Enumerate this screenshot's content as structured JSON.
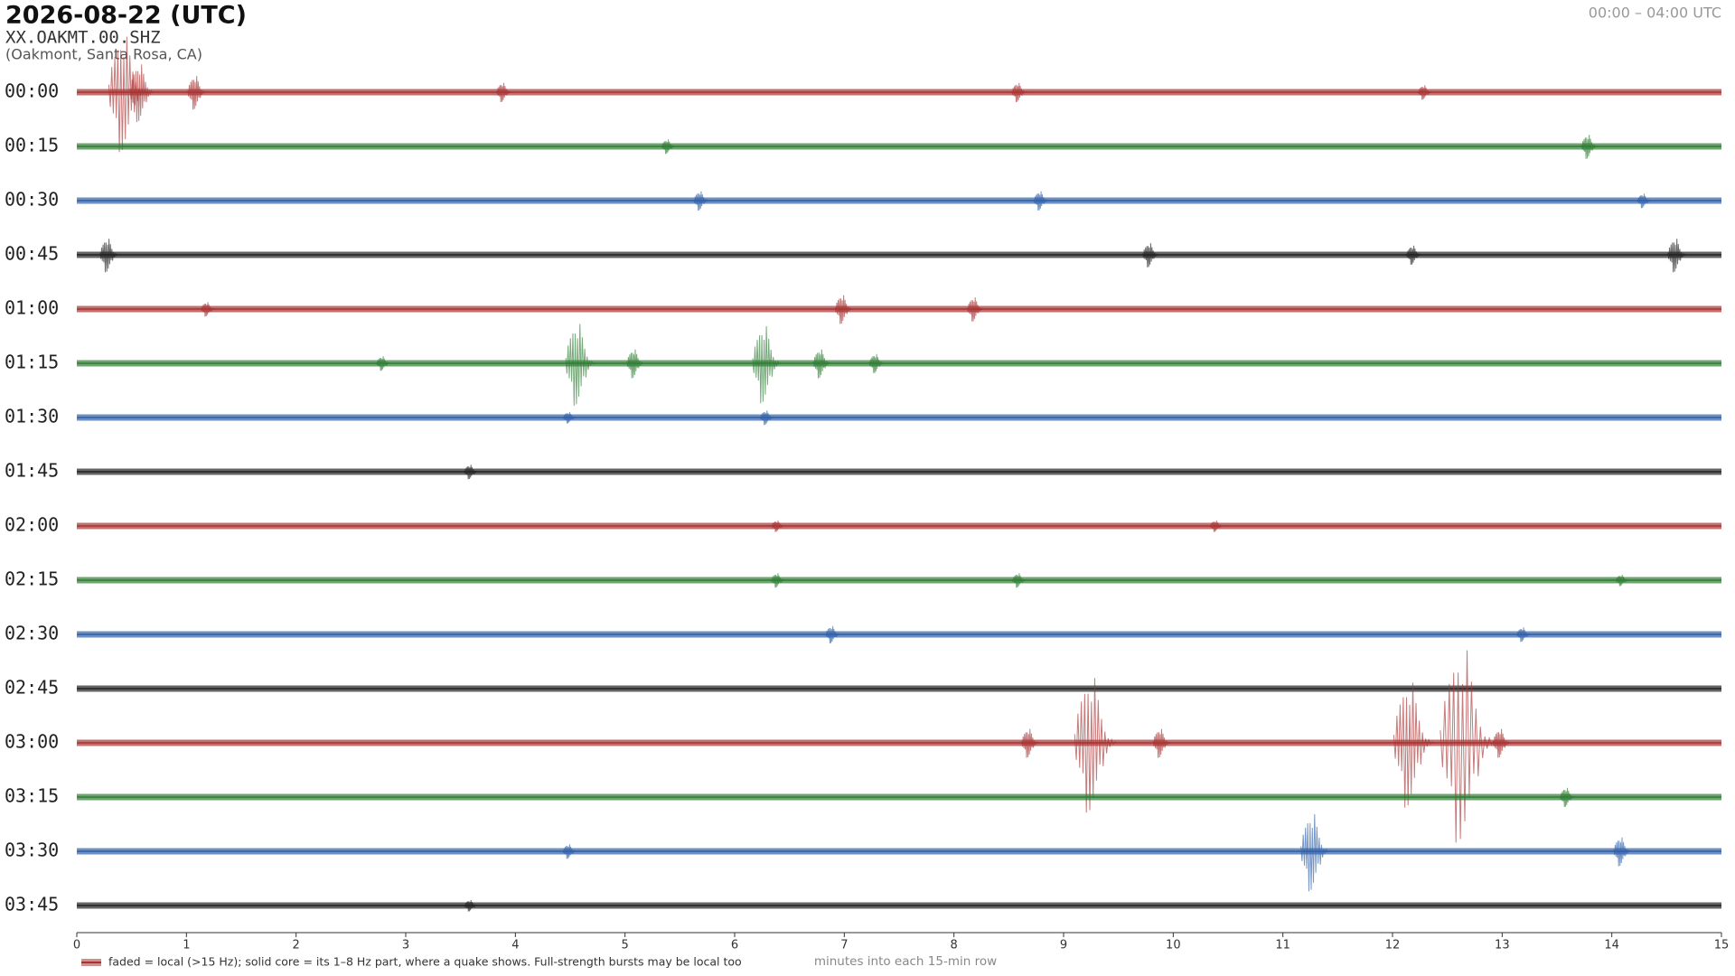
{
  "chart_data": {
    "type": "helicorder",
    "title": "2026-08-22  (UTC)",
    "subtitle": "XX.OAKMT.00.SHZ",
    "location": "(Oakmont, Santa Rosa, CA)",
    "time_range": "00:00 – 04:00 UTC",
    "xlabel": "minutes into each 15-min row",
    "legend": "faded = local (>15 Hz); solid core = its 1–8 Hz part, where a quake shows. Full-strength bursts may be local too",
    "xlim": [
      0,
      15
    ],
    "xticks": [
      0,
      1,
      2,
      3,
      4,
      5,
      6,
      7,
      8,
      9,
      10,
      11,
      12,
      13,
      14,
      15
    ],
    "colors": [
      "#a83232",
      "#2e7d32",
      "#2f5fa8",
      "#222222"
    ],
    "rows": [
      {
        "label": "00:00",
        "events": [
          {
            "minute": 0.47,
            "amplitude": 1.2
          },
          {
            "minute": 0.6,
            "amplitude": 0.6
          },
          {
            "minute": 1.1,
            "amplitude": 0.35
          },
          {
            "minute": 3.9,
            "amplitude": 0.2
          },
          {
            "minute": 8.6,
            "amplitude": 0.2
          },
          {
            "minute": 12.3,
            "amplitude": 0.15
          }
        ]
      },
      {
        "label": "00:15",
        "events": [
          {
            "minute": 5.4,
            "amplitude": 0.15
          },
          {
            "minute": 13.8,
            "amplitude": 0.25
          }
        ]
      },
      {
        "label": "00:30",
        "events": [
          {
            "minute": 5.7,
            "amplitude": 0.2
          },
          {
            "minute": 8.8,
            "amplitude": 0.2
          },
          {
            "minute": 14.3,
            "amplitude": 0.15
          }
        ]
      },
      {
        "label": "00:45",
        "events": [
          {
            "minute": 0.3,
            "amplitude": 0.35
          },
          {
            "minute": 9.8,
            "amplitude": 0.25
          },
          {
            "minute": 12.2,
            "amplitude": 0.2
          },
          {
            "minute": 14.6,
            "amplitude": 0.35
          }
        ]
      },
      {
        "label": "01:00",
        "events": [
          {
            "minute": 1.2,
            "amplitude": 0.15
          },
          {
            "minute": 7.0,
            "amplitude": 0.3
          },
          {
            "minute": 8.2,
            "amplitude": 0.25
          }
        ]
      },
      {
        "label": "01:15",
        "events": [
          {
            "minute": 2.8,
            "amplitude": 0.15
          },
          {
            "minute": 4.6,
            "amplitude": 0.85
          },
          {
            "minute": 5.1,
            "amplitude": 0.3
          },
          {
            "minute": 6.3,
            "amplitude": 0.8
          },
          {
            "minute": 6.8,
            "amplitude": 0.3
          },
          {
            "minute": 7.3,
            "amplitude": 0.2
          }
        ]
      },
      {
        "label": "01:30",
        "events": [
          {
            "minute": 4.5,
            "amplitude": 0.12
          },
          {
            "minute": 6.3,
            "amplitude": 0.15
          }
        ]
      },
      {
        "label": "01:45",
        "events": [
          {
            "minute": 3.6,
            "amplitude": 0.15
          }
        ]
      },
      {
        "label": "02:00",
        "events": [
          {
            "minute": 6.4,
            "amplitude": 0.12
          },
          {
            "minute": 10.4,
            "amplitude": 0.12
          }
        ]
      },
      {
        "label": "02:15",
        "events": [
          {
            "minute": 6.4,
            "amplitude": 0.15
          },
          {
            "minute": 8.6,
            "amplitude": 0.15
          },
          {
            "minute": 14.1,
            "amplitude": 0.12
          }
        ]
      },
      {
        "label": "02:30",
        "events": [
          {
            "minute": 6.9,
            "amplitude": 0.18
          },
          {
            "minute": 13.2,
            "amplitude": 0.15
          }
        ]
      },
      {
        "label": "02:45",
        "events": []
      },
      {
        "label": "03:00",
        "events": [
          {
            "minute": 8.7,
            "amplitude": 0.3
          },
          {
            "minute": 9.3,
            "amplitude": 1.4
          },
          {
            "minute": 9.9,
            "amplitude": 0.3
          },
          {
            "minute": 12.2,
            "amplitude": 1.3
          },
          {
            "minute": 12.7,
            "amplitude": 2.0
          },
          {
            "minute": 13.0,
            "amplitude": 0.3
          }
        ]
      },
      {
        "label": "03:15",
        "events": [
          {
            "minute": 13.6,
            "amplitude": 0.2
          }
        ]
      },
      {
        "label": "03:30",
        "events": [
          {
            "minute": 4.5,
            "amplitude": 0.15
          },
          {
            "minute": 11.3,
            "amplitude": 0.8
          },
          {
            "minute": 14.1,
            "amplitude": 0.3
          }
        ]
      },
      {
        "label": "03:45",
        "events": [
          {
            "minute": 3.6,
            "amplitude": 0.12
          }
        ]
      }
    ]
  }
}
